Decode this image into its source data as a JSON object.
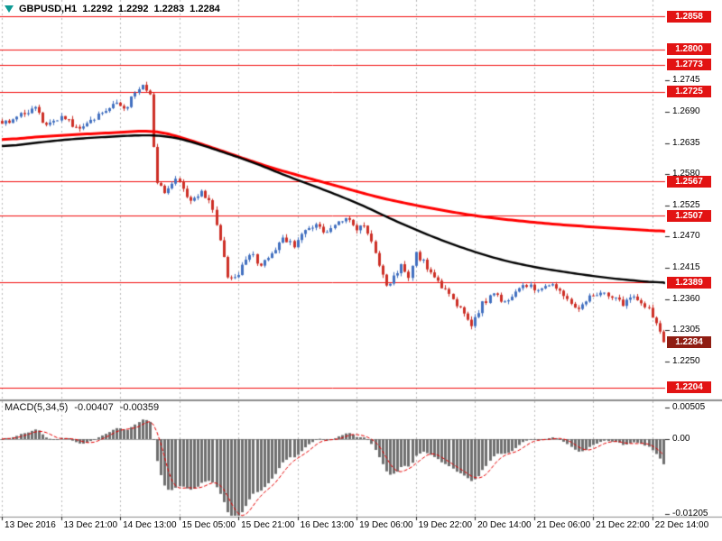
{
  "header": {
    "symbol_timeframe": "GBPUSD,H1",
    "open": "1.2292",
    "high": "1.2292",
    "low": "1.2283",
    "close": "1.2284"
  },
  "indicator": {
    "name": "MACD(5,34,5)",
    "value_main": "-0.00407",
    "value_signal": "-0.00359"
  },
  "colors": {
    "background": "#ffffff",
    "grid": "#b8b8b8",
    "bull_candle": "#4270c0",
    "bear_candle": "#cd2f26",
    "ma_red": "#ff0000",
    "ma_black": "#000000",
    "level_line": "#f20d0d",
    "level_badge": "#e21313",
    "current_price_badge": "#8f1d12",
    "macd_bar": "#6f6f6f",
    "macd_signal": "#e60000",
    "zero_line": "#a0a0a0",
    "separator": "#8c8c8c",
    "axis_text": "#000000"
  },
  "chart_data": {
    "type": "candlestick",
    "title": "GBPUSD,H1",
    "symbol": "GBPUSD",
    "timeframe": "H1",
    "current_bar_ohlc": {
      "open": 1.2292,
      "high": 1.2292,
      "low": 1.2283,
      "close": 1.2284
    },
    "price_axis": {
      "min": 1.2183,
      "max": 1.2887,
      "plain_ticks": [
        1.2745,
        1.269,
        1.2635,
        1.258,
        1.2525,
        1.247,
        1.2415,
        1.236,
        1.2305,
        1.225
      ],
      "level_lines": [
        1.2858,
        1.28,
        1.2773,
        1.2725,
        1.2567,
        1.2507,
        1.2389,
        1.2204
      ],
      "current_price": 1.2284
    },
    "time_axis": {
      "grid_indices": [
        0,
        16,
        32,
        48,
        64,
        80,
        96,
        112,
        128,
        144,
        160,
        176
      ],
      "labels": [
        "13 Dec 2016",
        "13 Dec 21:00",
        "14 Dec 13:00",
        "15 Dec 05:00",
        "15 Dec 21:00",
        "16 Dec 13:00",
        "19 Dec 06:00",
        "19 Dec 22:00",
        "20 Dec 14:00",
        "21 Dec 06:00",
        "21 Dec 22:00",
        "22 Dec 14:00"
      ]
    },
    "candles": {
      "count": 180,
      "seed": 20161222,
      "noise": 0.0005,
      "wick": 0.0006,
      "close_anchors": [
        [
          0,
          1.2668
        ],
        [
          5,
          1.2686
        ],
        [
          9,
          1.2698
        ],
        [
          12,
          1.2664
        ],
        [
          16,
          1.2682
        ],
        [
          21,
          1.2658
        ],
        [
          26,
          1.2686
        ],
        [
          30,
          1.2706
        ],
        [
          33,
          1.2692
        ],
        [
          36,
          1.2722
        ],
        [
          38,
          1.2736
        ],
        [
          40,
          1.2722
        ],
        [
          41,
          1.2628
        ],
        [
          42,
          1.2562
        ],
        [
          44,
          1.255
        ],
        [
          47,
          1.2574
        ],
        [
          51,
          1.2532
        ],
        [
          54,
          1.2552
        ],
        [
          57,
          1.2522
        ],
        [
          59,
          1.2468
        ],
        [
          61,
          1.2402
        ],
        [
          63,
          1.2396
        ],
        [
          65,
          1.2416
        ],
        [
          67,
          1.2442
        ],
        [
          70,
          1.242
        ],
        [
          73,
          1.2438
        ],
        [
          76,
          1.2468
        ],
        [
          79,
          1.2456
        ],
        [
          82,
          1.248
        ],
        [
          85,
          1.2494
        ],
        [
          88,
          1.2474
        ],
        [
          91,
          1.2498
        ],
        [
          94,
          1.2502
        ],
        [
          96,
          1.2482
        ],
        [
          98,
          1.2494
        ],
        [
          100,
          1.2462
        ],
        [
          102,
          1.242
        ],
        [
          104,
          1.238
        ],
        [
          106,
          1.2398
        ],
        [
          108,
          1.2418
        ],
        [
          110,
          1.2402
        ],
        [
          112,
          1.2438
        ],
        [
          114,
          1.2426
        ],
        [
          117,
          1.2398
        ],
        [
          120,
          1.2376
        ],
        [
          123,
          1.2352
        ],
        [
          125,
          1.233
        ],
        [
          127,
          1.2314
        ],
        [
          130,
          1.2352
        ],
        [
          133,
          1.2368
        ],
        [
          136,
          1.2354
        ],
        [
          139,
          1.2376
        ],
        [
          142,
          1.2386
        ],
        [
          145,
          1.2372
        ],
        [
          148,
          1.2386
        ],
        [
          151,
          1.2372
        ],
        [
          154,
          1.2352
        ],
        [
          156,
          1.2338
        ],
        [
          159,
          1.2362
        ],
        [
          162,
          1.2376
        ],
        [
          165,
          1.2362
        ],
        [
          168,
          1.235
        ],
        [
          171,
          1.2368
        ],
        [
          173,
          1.2352
        ],
        [
          175,
          1.234
        ],
        [
          177,
          1.2322
        ],
        [
          178,
          1.2304
        ],
        [
          179,
          1.2284
        ]
      ]
    },
    "overlays": {
      "ma_red": {
        "anchors": [
          [
            0,
            1.264
          ],
          [
            10,
            1.2646
          ],
          [
            20,
            1.265
          ],
          [
            30,
            1.2653
          ],
          [
            38,
            1.2656
          ],
          [
            41,
            1.2657
          ],
          [
            44,
            1.2653
          ],
          [
            48,
            1.2646
          ],
          [
            56,
            1.2629
          ],
          [
            64,
            1.2611
          ],
          [
            73,
            1.2591
          ],
          [
            83,
            1.2573
          ],
          [
            93,
            1.2555
          ],
          [
            102,
            1.2539
          ],
          [
            112,
            1.2525
          ],
          [
            122,
            1.2513
          ],
          [
            131,
            1.2504
          ],
          [
            141,
            1.2497
          ],
          [
            151,
            1.2491
          ],
          [
            160,
            1.2487
          ],
          [
            170,
            1.2483
          ],
          [
            179,
            1.2479
          ]
        ]
      },
      "ma_black": {
        "anchors": [
          [
            0,
            1.2628
          ],
          [
            10,
            1.2636
          ],
          [
            19,
            1.2642
          ],
          [
            29,
            1.2646
          ],
          [
            38,
            1.2649
          ],
          [
            44,
            1.2648
          ],
          [
            50,
            1.264
          ],
          [
            58,
            1.2623
          ],
          [
            68,
            1.2601
          ],
          [
            77,
            1.2577
          ],
          [
            87,
            1.2553
          ],
          [
            97,
            1.2527
          ],
          [
            106,
            1.2499
          ],
          [
            116,
            1.2471
          ],
          [
            126,
            1.2447
          ],
          [
            135,
            1.2429
          ],
          [
            145,
            1.2415
          ],
          [
            155,
            1.2405
          ],
          [
            164,
            1.2397
          ],
          [
            172,
            1.2392
          ],
          [
            179,
            1.2388
          ]
        ]
      }
    },
    "macd": {
      "name": "MACD(5,34,5)",
      "fast_ema": 5,
      "slow_ema": 34,
      "signal_sma": 5,
      "current_main": -0.00407,
      "current_signal": -0.00359,
      "axis": {
        "min": -0.0125,
        "max": 0.0061,
        "ticks": [
          {
            "value": 0.00505,
            "label": "0.00505"
          },
          {
            "value": 0,
            "label": "0.00"
          },
          {
            "value": -0.01205,
            "label": "-0.01205"
          }
        ]
      }
    }
  }
}
